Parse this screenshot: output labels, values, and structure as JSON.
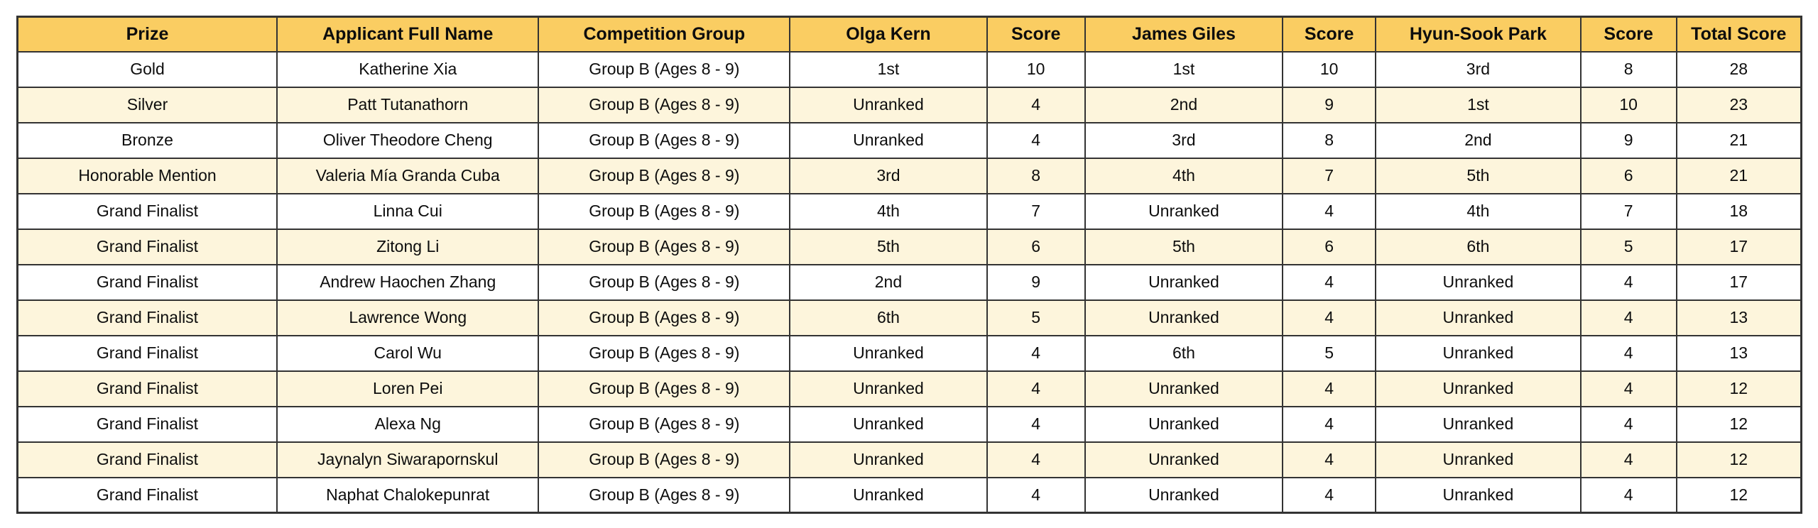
{
  "colors": {
    "header_bg": "#FACD62",
    "row_bg": "#FFFFFF",
    "row_alt_bg": "#FDF5DC",
    "border_color": "#333333",
    "text_color": "#0D0D0D"
  },
  "table": {
    "columns": [
      {
        "key": "prize",
        "label": "Prize"
      },
      {
        "key": "applicant_full_name",
        "label": "Applicant Full Name"
      },
      {
        "key": "competition_group",
        "label": "Competition Group"
      },
      {
        "key": "olga_kern",
        "label": "Olga Kern"
      },
      {
        "key": "olga_kern_score",
        "label": "Score"
      },
      {
        "key": "james_giles",
        "label": "James Giles"
      },
      {
        "key": "james_giles_score",
        "label": "Score"
      },
      {
        "key": "hyun_sook_park",
        "label": "Hyun-Sook Park"
      },
      {
        "key": "hyun_sook_park_score",
        "label": "Score"
      },
      {
        "key": "total_score",
        "label": "Total Score"
      }
    ],
    "rows": [
      [
        "Gold",
        "Katherine Xia",
        "Group B (Ages 8 - 9)",
        "1st",
        "10",
        "1st",
        "10",
        "3rd",
        "8",
        "28"
      ],
      [
        "Silver",
        "Patt Tutanathorn",
        "Group B (Ages 8 - 9)",
        "Unranked",
        "4",
        "2nd",
        "9",
        "1st",
        "10",
        "23"
      ],
      [
        "Bronze",
        "Oliver Theodore Cheng",
        "Group B (Ages 8 - 9)",
        "Unranked",
        "4",
        "3rd",
        "8",
        "2nd",
        "9",
        "21"
      ],
      [
        "Honorable Mention",
        "Valeria Mía Granda Cuba",
        "Group B (Ages 8 - 9)",
        "3rd",
        "8",
        "4th",
        "7",
        "5th",
        "6",
        "21"
      ],
      [
        "Grand Finalist",
        "Linna Cui",
        "Group B (Ages 8 - 9)",
        "4th",
        "7",
        "Unranked",
        "4",
        "4th",
        "7",
        "18"
      ],
      [
        "Grand Finalist",
        "Zitong Li",
        "Group B (Ages 8 - 9)",
        "5th",
        "6",
        "5th",
        "6",
        "6th",
        "5",
        "17"
      ],
      [
        "Grand Finalist",
        "Andrew Haochen Zhang",
        "Group B (Ages 8 - 9)",
        "2nd",
        "9",
        "Unranked",
        "4",
        "Unranked",
        "4",
        "17"
      ],
      [
        "Grand Finalist",
        "Lawrence Wong",
        "Group B (Ages 8 - 9)",
        "6th",
        "5",
        "Unranked",
        "4",
        "Unranked",
        "4",
        "13"
      ],
      [
        "Grand Finalist",
        "Carol Wu",
        "Group B (Ages 8 - 9)",
        "Unranked",
        "4",
        "6th",
        "5",
        "Unranked",
        "4",
        "13"
      ],
      [
        "Grand Finalist",
        "Loren Pei",
        "Group B (Ages 8 - 9)",
        "Unranked",
        "4",
        "Unranked",
        "4",
        "Unranked",
        "4",
        "12"
      ],
      [
        "Grand Finalist",
        "Alexa Ng",
        "Group B (Ages 8 - 9)",
        "Unranked",
        "4",
        "Unranked",
        "4",
        "Unranked",
        "4",
        "12"
      ],
      [
        "Grand Finalist",
        "Jaynalyn Siwarapornskul",
        "Group B (Ages 8 - 9)",
        "Unranked",
        "4",
        "Unranked",
        "4",
        "Unranked",
        "4",
        "12"
      ],
      [
        "Grand Finalist",
        "Naphat Chalokepunrat",
        "Group B (Ages 8 - 9)",
        "Unranked",
        "4",
        "Unranked",
        "4",
        "Unranked",
        "4",
        "12"
      ]
    ]
  }
}
